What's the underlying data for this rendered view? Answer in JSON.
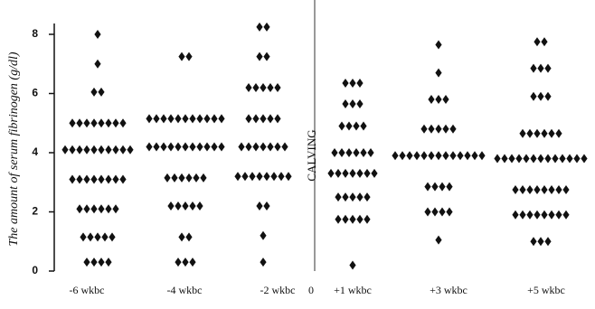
{
  "chart_data": {
    "type": "dotplot",
    "y_label": "The amount of serum fibrinogen (g/dl)",
    "annotation": "CALVING",
    "categories": [
      "-6 wkbc",
      "-4 wkbc",
      "-2 wkbc",
      "0",
      "+1 wkbc",
      "+3 wkbc",
      "+5 wkbc"
    ],
    "levels": [
      [
        8.0,
        7.0,
        6.05,
        5.0,
        4.1,
        3.1,
        2.1,
        1.15,
        0.3
      ],
      [
        7.25,
        5.15,
        4.2,
        3.15,
        2.2,
        1.15,
        0.3
      ],
      [
        8.25,
        7.25,
        6.2,
        5.15,
        4.2,
        3.2,
        2.2,
        1.2,
        0.3
      ],
      [],
      [
        6.35,
        5.65,
        4.9,
        4.0,
        3.3,
        2.5,
        1.75,
        0.2
      ],
      [
        7.65,
        6.7,
        5.8,
        4.8,
        3.9,
        2.85,
        2.0,
        1.05
      ],
      [
        7.75,
        6.85,
        5.9,
        4.65,
        3.8,
        2.75,
        1.9,
        1.0
      ]
    ],
    "counts": [
      [
        1,
        1,
        2,
        8,
        10,
        8,
        6,
        5,
        4
      ],
      [
        2,
        11,
        11,
        6,
        5,
        2,
        3
      ],
      [
        2,
        2,
        5,
        5,
        7,
        8,
        2,
        1,
        1
      ],
      [],
      [
        3,
        3,
        4,
        6,
        7,
        5,
        5,
        1
      ],
      [
        1,
        1,
        3,
        5,
        13,
        4,
        4,
        1
      ],
      [
        2,
        3,
        3,
        6,
        13,
        8,
        8,
        3
      ]
    ],
    "color": "#111111",
    "ylim": [
      0,
      8.4
    ],
    "yticks": [
      0,
      2,
      4,
      6,
      8
    ]
  }
}
